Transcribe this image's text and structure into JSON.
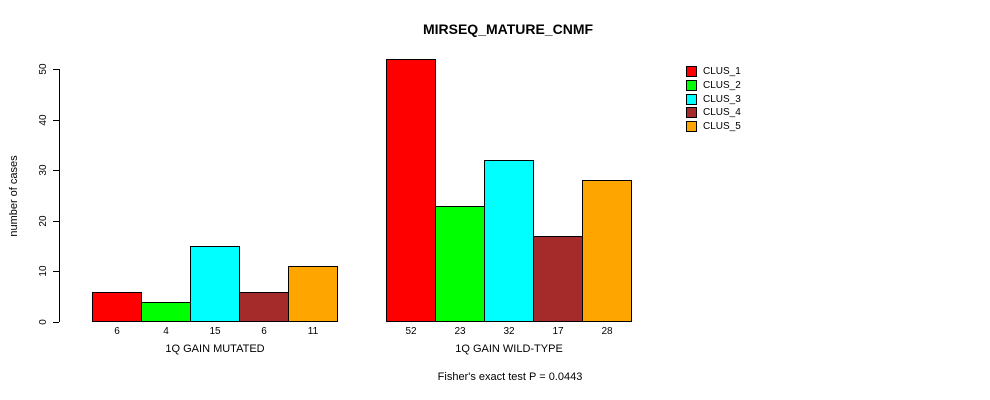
{
  "chart_data": {
    "type": "bar",
    "title": "MIRSEQ_MATURE_CNMF",
    "ylabel": "number of cases",
    "ylim": [
      0,
      52
    ],
    "yticks": [
      0,
      10,
      20,
      30,
      40,
      50
    ],
    "grid": false,
    "legend_position": "right",
    "bar_border_color": "#000000",
    "categories": [
      "1Q GAIN MUTATED",
      "1Q GAIN WILD-TYPE"
    ],
    "series": [
      {
        "name": "CLUS_1",
        "color": "#FF0000",
        "values": [
          6,
          52
        ]
      },
      {
        "name": "CLUS_2",
        "color": "#00FF00",
        "values": [
          4,
          23
        ]
      },
      {
        "name": "CLUS_3",
        "color": "#00FFFF",
        "values": [
          15,
          32
        ]
      },
      {
        "name": "CLUS_4",
        "color": "#A52A2A",
        "values": [
          6,
          17
        ]
      },
      {
        "name": "CLUS_5",
        "color": "#FFA500",
        "values": [
          11,
          28
        ]
      }
    ],
    "bar_value_labels": {
      "1Q GAIN MUTATED": [
        6,
        4,
        15,
        6,
        11
      ],
      "1Q GAIN WILD-TYPE": [
        52,
        23,
        32,
        17,
        28
      ]
    },
    "annotation": "Fisher's exact test P = 0.0443"
  },
  "legend": {
    "items": [
      {
        "label": "CLUS_1",
        "color": "#FF0000"
      },
      {
        "label": "CLUS_2",
        "color": "#00FF00"
      },
      {
        "label": "CLUS_3",
        "color": "#00FFFF"
      },
      {
        "label": "CLUS_4",
        "color": "#A52A2A"
      },
      {
        "label": "CLUS_5",
        "color": "#FFA500"
      }
    ]
  }
}
